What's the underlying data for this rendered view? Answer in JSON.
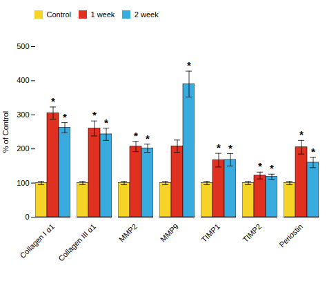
{
  "chart_data": {
    "type": "bar",
    "categories": [
      "Collagen I α1",
      "Collagen III α1",
      "MMP2",
      "MMP9",
      "TIMP1",
      "TIMP2",
      "Periostin"
    ],
    "series": [
      {
        "name": "Control",
        "color": "#f5d327",
        "values": [
          100,
          100,
          100,
          100,
          100,
          100,
          100
        ],
        "errors": [
          5,
          5,
          5,
          5,
          5,
          5,
          5
        ]
      },
      {
        "name": "1 week",
        "color": "#e03020",
        "values": [
          305,
          260,
          207,
          208,
          167,
          122,
          205
        ],
        "errors": [
          18,
          22,
          15,
          18,
          20,
          10,
          20
        ]
      },
      {
        "name": "2 week",
        "color": "#3aabdf",
        "values": [
          262,
          243,
          202,
          390,
          168,
          118,
          160
        ],
        "errors": [
          15,
          18,
          12,
          38,
          18,
          8,
          15
        ]
      }
    ],
    "annotations": [
      {
        "text": "*",
        "category": "Collagen I α1",
        "series": "1 week"
      },
      {
        "text": "*",
        "category": "Collagen III α1",
        "series": "1 week"
      },
      {
        "text": "*",
        "category": "MMP2",
        "series": "1 week"
      },
      {
        "text": "*",
        "category": "TIMP1",
        "series": "1 week"
      },
      {
        "text": "*",
        "category": "TIMP2",
        "series": "1 week"
      },
      {
        "text": "*",
        "category": "Periostin",
        "series": "1 week"
      },
      {
        "text": "*",
        "category": "Collagen I α1",
        "series": "2 week"
      },
      {
        "text": "*",
        "category": "Collagen III α1",
        "series": "2 week"
      },
      {
        "text": "*",
        "category": "MMP2",
        "series": "2 week"
      },
      {
        "text": "*",
        "category": "MMP9",
        "series": "2 week"
      },
      {
        "text": "*",
        "category": "TIMP1",
        "series": "2 week"
      },
      {
        "text": "*",
        "category": "TIMP2",
        "series": "2 week"
      },
      {
        "text": "*",
        "category": "Periostin",
        "series": "2 week"
      }
    ],
    "ylabel": "% of Control",
    "ylim": [
      0,
      500
    ],
    "yticks": [
      0,
      100,
      200,
      300,
      400,
      500
    ],
    "legend": "upper left"
  }
}
